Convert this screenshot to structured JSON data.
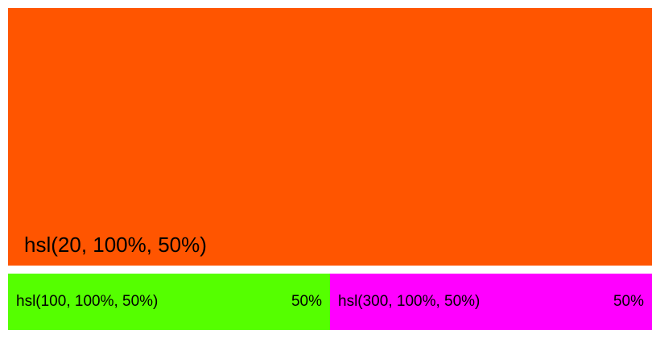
{
  "result": {
    "label": "hsl(20, 100%, 50%)",
    "color": "#ff5500"
  },
  "swatches": [
    {
      "label": "hsl(100, 100%, 50%)",
      "weight": "50%",
      "color": "#55ff00"
    },
    {
      "label": "hsl(300, 100%, 50%)",
      "weight": "50%",
      "color": "#ff00ff"
    }
  ]
}
